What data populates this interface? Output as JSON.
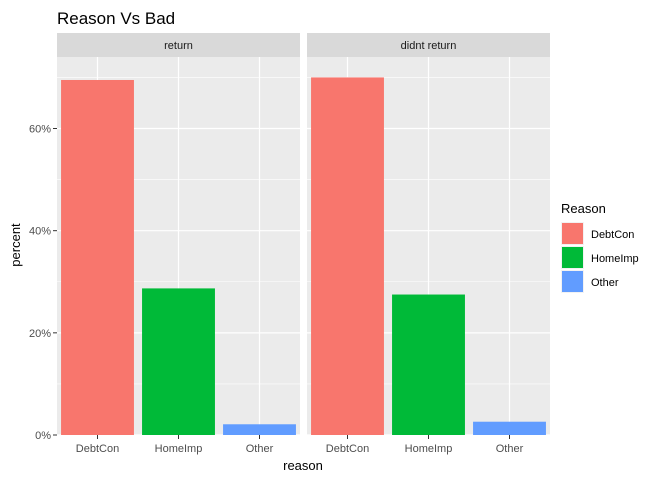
{
  "chart_data": {
    "type": "bar",
    "title": "Reason Vs Bad",
    "xlabel": "reason",
    "ylabel": "percent",
    "categories": [
      "DebtCon",
      "HomeImp",
      "Other"
    ],
    "ylim": [
      0,
      0.74
    ],
    "yticks": [
      {
        "value": 0,
        "label": "0%"
      },
      {
        "value": 0.2,
        "label": "20%"
      },
      {
        "value": 0.4,
        "label": "40%"
      },
      {
        "value": 0.6,
        "label": "60%"
      }
    ],
    "grid": true,
    "legend": {
      "title": "Reason",
      "position": "right",
      "entries": [
        "DebtCon",
        "HomeImp",
        "Other"
      ]
    },
    "colors": {
      "DebtCon": "#F8766D",
      "HomeImp": "#00BA38",
      "Other": "#619CFF"
    },
    "facets": [
      {
        "label": "return",
        "values": [
          0.695,
          0.287,
          0.021
        ]
      },
      {
        "label": "didnt return",
        "values": [
          0.7,
          0.275,
          0.026
        ]
      }
    ]
  }
}
